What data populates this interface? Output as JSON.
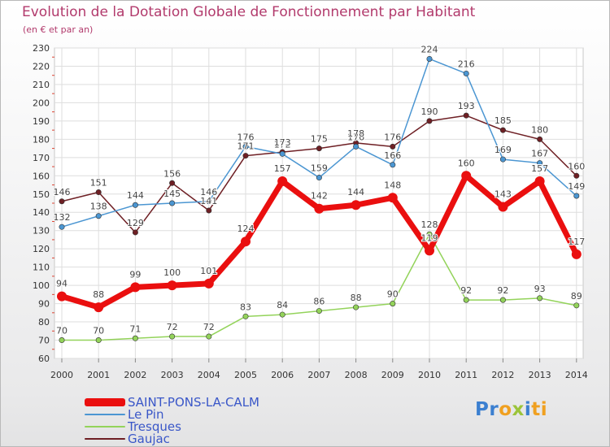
{
  "title": "Evolution de la Dotation Globale de Fonctionnement par Habitant",
  "subtitle": "(en € et par an)",
  "logo": {
    "parts": [
      {
        "text": "Pr",
        "color": "#3b7fd0"
      },
      {
        "text": "o",
        "color": "#f0a020"
      },
      {
        "text": "x",
        "color": "#9bc43a"
      },
      {
        "text": "i",
        "color": "#3b7fd0"
      },
      {
        "text": "ti",
        "color": "#f0a020"
      }
    ]
  },
  "chart_data": {
    "type": "line",
    "categories": [
      "2000",
      "2001",
      "2002",
      "2003",
      "2004",
      "2005",
      "2006",
      "2007",
      "2008",
      "2009",
      "2010",
      "2011",
      "2012",
      "2013",
      "2014"
    ],
    "ylim": [
      60,
      230
    ],
    "yticks": [
      60,
      70,
      80,
      90,
      100,
      110,
      120,
      130,
      140,
      150,
      160,
      170,
      180,
      190,
      200,
      210,
      220,
      230
    ],
    "grid": true,
    "legend_position": "bottom-left",
    "series": [
      {
        "name": "SAINT-PONS-LA-CALM",
        "color": "#ea0f0f",
        "values": [
          94,
          88,
          99,
          100,
          101,
          124,
          157,
          142,
          144,
          148,
          119,
          160,
          143,
          157,
          117
        ]
      },
      {
        "name": "Le Pin",
        "color": "#4b96d2",
        "values": [
          132,
          138,
          144,
          145,
          146,
          176,
          172,
          159,
          176,
          166,
          224,
          216,
          169,
          167,
          149
        ]
      },
      {
        "name": "Tresques",
        "color": "#93d35a",
        "values": [
          70,
          70,
          71,
          72,
          72,
          83,
          84,
          86,
          88,
          90,
          128,
          92,
          92,
          93,
          89
        ]
      },
      {
        "name": "Gaujac",
        "color": "#6e1f24",
        "values": [
          146,
          151,
          129,
          156,
          141,
          171,
          173,
          175,
          178,
          176,
          190,
          193,
          185,
          180,
          160
        ]
      }
    ]
  }
}
